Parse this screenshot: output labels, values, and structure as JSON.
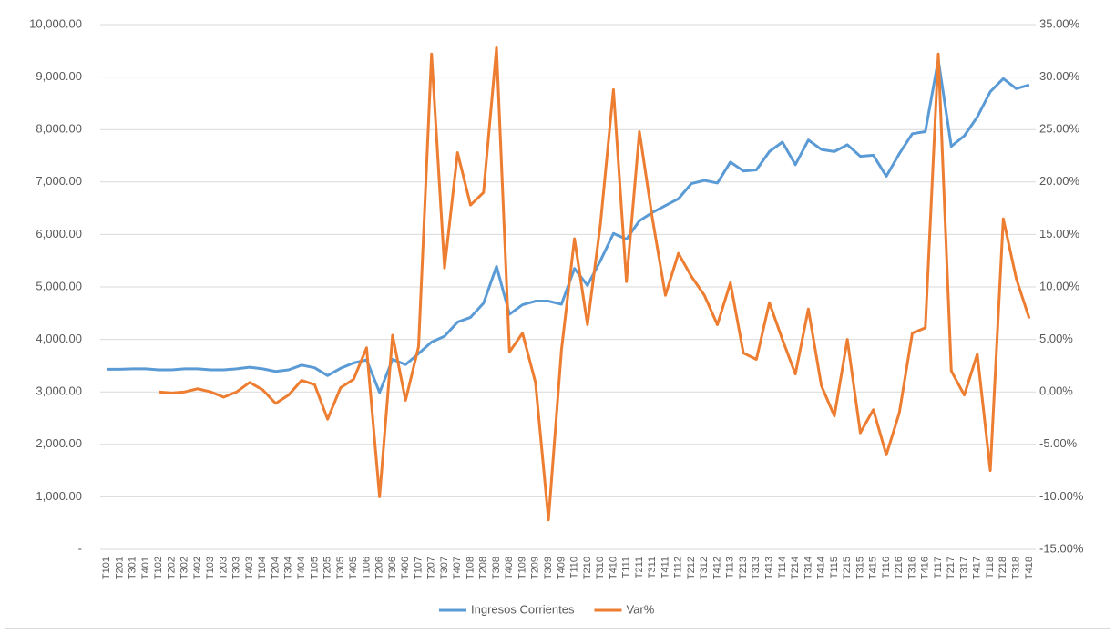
{
  "chart_data": {
    "type": "line",
    "categories": [
      "T101",
      "T201",
      "T301",
      "T401",
      "T102",
      "T202",
      "T302",
      "T402",
      "T103",
      "T203",
      "T303",
      "T403",
      "T104",
      "T204",
      "T304",
      "T404",
      "T105",
      "T205",
      "T305",
      "T405",
      "T106",
      "T206",
      "T306",
      "T406",
      "T107",
      "T207",
      "T307",
      "T407",
      "T108",
      "T208",
      "T308",
      "T408",
      "T109",
      "T209",
      "T309",
      "T409",
      "T110",
      "T210",
      "T310",
      "T410",
      "T111",
      "T211",
      "T311",
      "T411",
      "T112",
      "T212",
      "T312",
      "T412",
      "T113",
      "T213",
      "T313",
      "T413",
      "T114",
      "T214",
      "T314",
      "T414",
      "T115",
      "T215",
      "T315",
      "T415",
      "T116",
      "T216",
      "T316",
      "T416",
      "T117",
      "T217",
      "T317",
      "T417",
      "T118",
      "T218",
      "T318",
      "T418"
    ],
    "series": [
      {
        "name": "Ingresos Corrientes",
        "color": "#5b9bd5",
        "values": [
          3430,
          3430,
          3440,
          3440,
          3420,
          3420,
          3440,
          3440,
          3420,
          3420,
          3440,
          3470,
          3440,
          3390,
          3420,
          3510,
          3460,
          3310,
          3450,
          3550,
          3610,
          2990,
          3620,
          3520,
          3730,
          3950,
          4060,
          4330,
          4420,
          4690,
          5390,
          4480,
          4660,
          4730,
          4730,
          4670,
          5350,
          5030,
          5500,
          6020,
          5910,
          6260,
          6420,
          6550,
          6680,
          6970,
          7030,
          6980,
          7380,
          7210,
          7230,
          7580,
          7760,
          7330,
          7800,
          7620,
          7580,
          7710,
          7490,
          7510,
          7110,
          7540,
          7920,
          7960,
          9330,
          7680,
          7880,
          8240,
          8720,
          8970,
          8780,
          8850
        ]
      },
      {
        "name": "Var%",
        "color": "#ed7d31",
        "axis": "y2",
        "values": [
          null,
          null,
          null,
          null,
          0.0,
          -0.1,
          0.0,
          0.3,
          0.0,
          -0.5,
          0.0,
          0.9,
          0.2,
          -1.1,
          -0.3,
          1.1,
          0.7,
          -2.6,
          0.4,
          1.2,
          4.2,
          -10.0,
          5.4,
          -0.8,
          4.3,
          32.2,
          11.8,
          22.8,
          17.8,
          19.0,
          32.8,
          3.8,
          5.6,
          0.9,
          -12.2,
          4.0,
          14.6,
          6.4,
          16.0,
          28.8,
          10.5,
          24.8,
          16.5,
          9.2,
          13.2,
          11.0,
          9.2,
          6.4,
          10.4,
          3.7,
          3.1,
          8.5,
          5.0,
          1.7,
          7.9,
          0.6,
          -2.3,
          5.0,
          -3.9,
          -1.7,
          -6.0,
          -2.0,
          5.6,
          6.1,
          32.2,
          2.0,
          -0.3,
          3.6,
          -7.5,
          16.5,
          10.8,
          7.0
        ]
      }
    ],
    "ylim": [
      0,
      10000
    ],
    "yticks": [
      {
        "value": 0,
        "label": "-"
      },
      {
        "value": 1000,
        "label": "1,000.00"
      },
      {
        "value": 2000,
        "label": "2,000.00"
      },
      {
        "value": 3000,
        "label": "3,000.00"
      },
      {
        "value": 4000,
        "label": "4,000.00"
      },
      {
        "value": 5000,
        "label": "5,000.00"
      },
      {
        "value": 6000,
        "label": "6,000.00"
      },
      {
        "value": 7000,
        "label": "7,000.00"
      },
      {
        "value": 8000,
        "label": "8,000.00"
      },
      {
        "value": 9000,
        "label": "9,000.00"
      },
      {
        "value": 10000,
        "label": "10,000.00"
      }
    ],
    "y2lim": [
      -15,
      35
    ],
    "y2ticks": [
      {
        "value": -15,
        "label": "-15.00%"
      },
      {
        "value": -10,
        "label": "-10.00%"
      },
      {
        "value": -5,
        "label": "-5.00%"
      },
      {
        "value": 0,
        "label": "0.00%"
      },
      {
        "value": 5,
        "label": "5.00%"
      },
      {
        "value": 10,
        "label": "10.00%"
      },
      {
        "value": 15,
        "label": "15.00%"
      },
      {
        "value": 20,
        "label": "20.00%"
      },
      {
        "value": 25,
        "label": "25.00%"
      },
      {
        "value": 30,
        "label": "30.00%"
      },
      {
        "value": 35,
        "label": "35.00%"
      }
    ],
    "grid": true,
    "legend": "bottom"
  }
}
